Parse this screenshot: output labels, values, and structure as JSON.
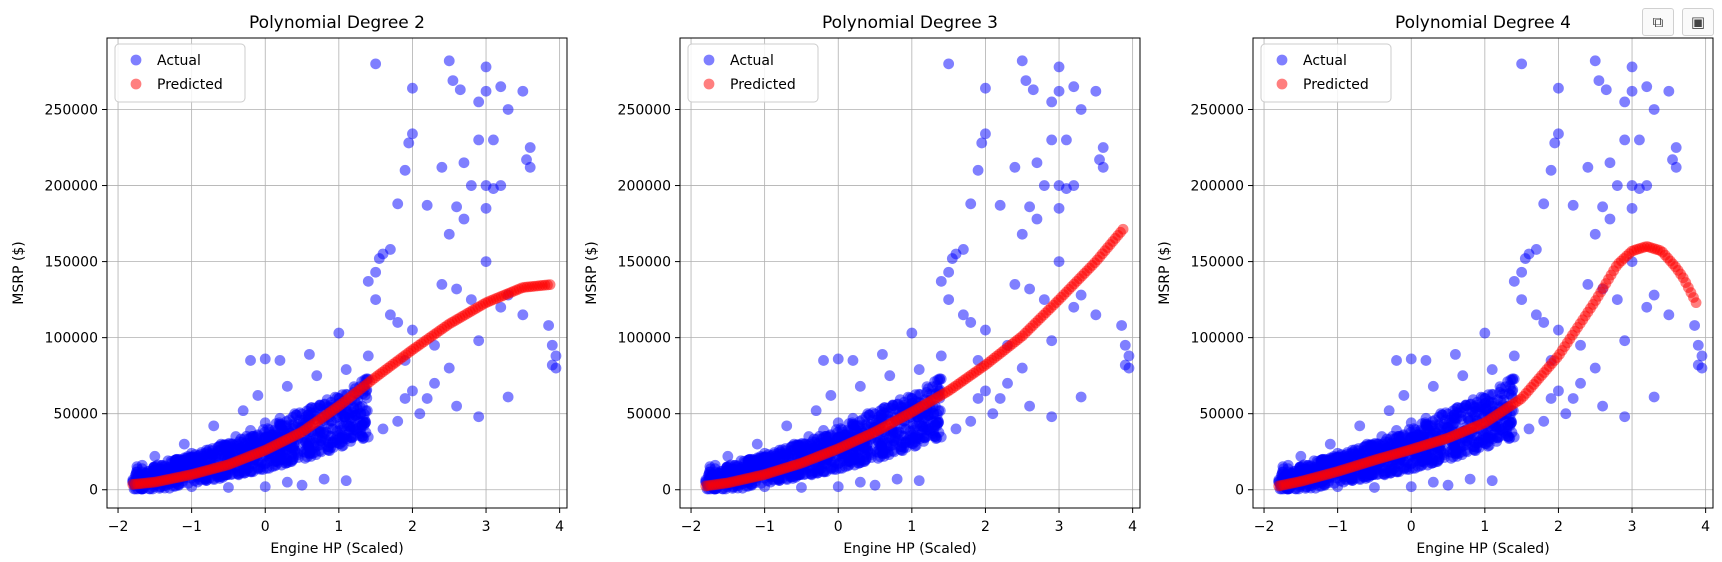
{
  "toolbar": {
    "copy_icon": "copy-icon",
    "save_icon": "save-icon"
  },
  "colors": {
    "actual": "#0000ff",
    "predicted": "#ff0000"
  },
  "chart_data": [
    {
      "type": "scatter",
      "title": "Polynomial Degree 2",
      "xlabel": "Engine HP (Scaled)",
      "ylabel": "MSRP ($)",
      "xlim": [
        -2.15,
        4.1
      ],
      "ylim": [
        -12000,
        297000
      ],
      "xticks": [
        -2,
        -1,
        0,
        1,
        2,
        3,
        4
      ],
      "xtick_labels": [
        "−2",
        "−1",
        "0",
        "1",
        "2",
        "3",
        "4"
      ],
      "yticks": [
        0,
        50000,
        100000,
        150000,
        200000,
        250000
      ],
      "ytick_labels": [
        "0",
        "50000",
        "100000",
        "150000",
        "200000",
        "250000"
      ],
      "grid": true,
      "legend": {
        "position": "upper-left",
        "entries": [
          "Actual",
          "Predicted"
        ]
      },
      "series": [
        {
          "name": "Actual",
          "points": [
            [
              -1.8,
              5000
            ],
            [
              -1.6,
              11000
            ],
            [
              -1.4,
              16000
            ],
            [
              -1.2,
              20000
            ],
            [
              -1.0,
              24000
            ],
            [
              -0.8,
              26000
            ],
            [
              -0.6,
              30000
            ],
            [
              -0.4,
              35000
            ],
            [
              -0.2,
              39000
            ],
            [
              0.0,
              44000
            ],
            [
              0.2,
              47000
            ],
            [
              0.4,
              50000
            ],
            [
              0.6,
              53000
            ],
            [
              0.8,
              56000
            ],
            [
              1.0,
              60000
            ],
            [
              1.2,
              64000
            ],
            [
              -1.5,
              22000
            ],
            [
              -1.1,
              30000
            ],
            [
              -0.9,
              17000
            ],
            [
              -0.7,
              42000
            ],
            [
              -0.5,
              22000
            ],
            [
              -0.3,
              52000
            ],
            [
              -0.1,
              62000
            ],
            [
              0.1,
              33000
            ],
            [
              0.3,
              68000
            ],
            [
              0.5,
              41000
            ],
            [
              0.7,
              75000
            ],
            [
              0.9,
              45000
            ],
            [
              1.1,
              79000
            ],
            [
              0.2,
              85000
            ],
            [
              0.0,
              86000
            ],
            [
              -0.2,
              85000
            ],
            [
              0.6,
              89000
            ],
            [
              1.0,
              103000
            ],
            [
              -1.0,
              2000
            ],
            [
              -0.5,
              1500
            ],
            [
              0.0,
              2000
            ],
            [
              0.5,
              3000
            ],
            [
              0.8,
              7000
            ],
            [
              1.1,
              6000
            ],
            [
              -1.3,
              1000
            ],
            [
              0.3,
              5000
            ],
            [
              1.2,
              35000
            ],
            [
              1.3,
              50000
            ],
            [
              1.4,
              88000
            ],
            [
              1.5,
              125000
            ],
            [
              1.5,
              143000
            ],
            [
              1.4,
              137000
            ],
            [
              1.55,
              152000
            ],
            [
              1.6,
              155000
            ],
            [
              1.7,
              158000
            ],
            [
              1.7,
              115000
            ],
            [
              1.8,
              110000
            ],
            [
              1.9,
              85000
            ],
            [
              2.0,
              65000
            ],
            [
              1.8,
              45000
            ],
            [
              1.6,
              40000
            ],
            [
              1.9,
              60000
            ],
            [
              2.1,
              50000
            ],
            [
              2.2,
              60000
            ],
            [
              2.4,
              135000
            ],
            [
              2.6,
              132000
            ],
            [
              2.5,
              168000
            ],
            [
              2.6,
              186000
            ],
            [
              2.8,
              200000
            ],
            [
              3.0,
              200000
            ],
            [
              3.1,
              198000
            ],
            [
              3.0,
              185000
            ],
            [
              3.2,
              200000
            ],
            [
              2.7,
              215000
            ],
            [
              2.9,
              230000
            ],
            [
              3.1,
              230000
            ],
            [
              2.9,
              255000
            ],
            [
              3.0,
              262000
            ],
            [
              3.2,
              265000
            ],
            [
              3.3,
              250000
            ],
            [
              3.0,
              278000
            ],
            [
              2.5,
              282000
            ],
            [
              2.55,
              269000
            ],
            [
              2.65,
              263000
            ],
            [
              3.5,
              262000
            ],
            [
              3.6,
              225000
            ],
            [
              3.55,
              217000
            ],
            [
              3.6,
              212000
            ],
            [
              1.9,
              210000
            ],
            [
              1.95,
              228000
            ],
            [
              2.0,
              234000
            ],
            [
              2.2,
              187000
            ],
            [
              1.8,
              188000
            ],
            [
              1.5,
              280000
            ],
            [
              2.0,
              264000
            ],
            [
              2.4,
              212000
            ],
            [
              2.7,
              178000
            ],
            [
              3.0,
              150000
            ],
            [
              3.2,
              120000
            ],
            [
              3.3,
              128000
            ],
            [
              3.5,
              115000
            ],
            [
              2.8,
              125000
            ],
            [
              2.9,
              98000
            ],
            [
              2.5,
              80000
            ],
            [
              2.3,
              70000
            ],
            [
              2.6,
              55000
            ],
            [
              2.9,
              48000
            ],
            [
              3.3,
              61000
            ],
            [
              3.85,
              108000
            ],
            [
              3.9,
              95000
            ],
            [
              3.95,
              88000
            ],
            [
              3.9,
              82000
            ],
            [
              3.95,
              80000
            ],
            [
              2.0,
              105000
            ],
            [
              2.3,
              95000
            ]
          ]
        },
        {
          "name": "Predicted",
          "curve": [
            [
              -1.8,
              3500
            ],
            [
              -1.5,
              5000
            ],
            [
              -1.0,
              10000
            ],
            [
              -0.5,
              16500
            ],
            [
              0.0,
              26000
            ],
            [
              0.5,
              38000
            ],
            [
              1.0,
              55000
            ],
            [
              1.5,
              74000
            ],
            [
              2.0,
              92000
            ],
            [
              2.5,
              109000
            ],
            [
              3.0,
              123000
            ],
            [
              3.5,
              133000
            ],
            [
              3.9,
              135000
            ]
          ]
        }
      ]
    },
    {
      "type": "scatter",
      "title": "Polynomial Degree 3",
      "xlabel": "Engine HP (Scaled)",
      "ylabel": "MSRP ($)",
      "xlim": [
        -2.15,
        4.1
      ],
      "ylim": [
        -12000,
        297000
      ],
      "xticks": [
        -2,
        -1,
        0,
        1,
        2,
        3,
        4
      ],
      "xtick_labels": [
        "−2",
        "−1",
        "0",
        "1",
        "2",
        "3",
        "4"
      ],
      "yticks": [
        0,
        50000,
        100000,
        150000,
        200000,
        250000
      ],
      "ytick_labels": [
        "0",
        "50000",
        "100000",
        "150000",
        "200000",
        "250000"
      ],
      "grid": true,
      "legend": {
        "position": "upper-left",
        "entries": [
          "Actual",
          "Predicted"
        ]
      },
      "series": [
        {
          "name": "Actual",
          "same_as_chart": 0
        },
        {
          "name": "Predicted",
          "curve": [
            [
              -1.8,
              2500
            ],
            [
              -1.5,
              4500
            ],
            [
              -1.0,
              10000
            ],
            [
              -0.5,
              17500
            ],
            [
              0.0,
              27000
            ],
            [
              0.5,
              38000
            ],
            [
              1.0,
              51000
            ],
            [
              1.5,
              65000
            ],
            [
              2.0,
              82000
            ],
            [
              2.5,
              101000
            ],
            [
              3.0,
              125000
            ],
            [
              3.5,
              150000
            ],
            [
              3.9,
              173000
            ]
          ]
        }
      ]
    },
    {
      "type": "scatter",
      "title": "Polynomial Degree 4",
      "xlabel": "Engine HP (Scaled)",
      "ylabel": "MSRP ($)",
      "xlim": [
        -2.15,
        4.1
      ],
      "ylim": [
        -12000,
        297000
      ],
      "xticks": [
        -2,
        -1,
        0,
        1,
        2,
        3,
        4
      ],
      "xtick_labels": [
        "−2",
        "−1",
        "0",
        "1",
        "2",
        "3",
        "4"
      ],
      "yticks": [
        0,
        50000,
        100000,
        150000,
        200000,
        250000
      ],
      "ytick_labels": [
        "0",
        "50000",
        "100000",
        "150000",
        "200000",
        "250000"
      ],
      "grid": true,
      "legend": {
        "position": "upper-left",
        "entries": [
          "Actual",
          "Predicted"
        ]
      },
      "series": [
        {
          "name": "Actual",
          "same_as_chart": 0
        },
        {
          "name": "Predicted",
          "curve": [
            [
              -1.8,
              2500
            ],
            [
              -1.5,
              5500
            ],
            [
              -1.0,
              12000
            ],
            [
              -0.5,
              19500
            ],
            [
              0.0,
              26500
            ],
            [
              0.5,
              34000
            ],
            [
              1.0,
              44000
            ],
            [
              1.5,
              60000
            ],
            [
              2.0,
              88000
            ],
            [
              2.5,
              124000
            ],
            [
              2.8,
              148000
            ],
            [
              3.0,
              157000
            ],
            [
              3.2,
              160000
            ],
            [
              3.4,
              157000
            ],
            [
              3.6,
              146000
            ],
            [
              3.7,
              139000
            ],
            [
              3.85,
              125000
            ],
            [
              3.9,
              120000
            ]
          ]
        }
      ]
    }
  ]
}
